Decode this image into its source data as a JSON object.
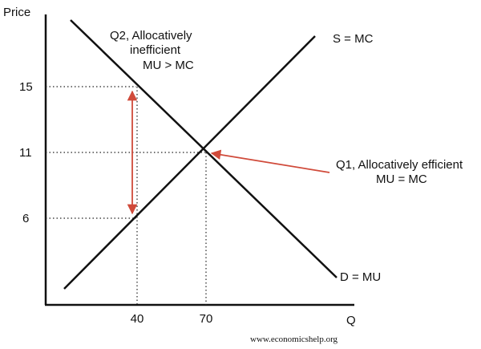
{
  "axes": {
    "y_label": "Price",
    "x_label": "Q",
    "y_values": [
      "15",
      "11",
      "6"
    ],
    "x_values": [
      "40",
      "70"
    ]
  },
  "curves": {
    "supply": "S = MC",
    "demand": "D = MU"
  },
  "annotations": {
    "q2": [
      "Q2, Allocatively",
      "inefficient",
      "MU > MC"
    ],
    "q1": [
      "Q1, Allocatively efficient",
      "MU = MC"
    ]
  },
  "footer": "www.economicshelp.org"
}
